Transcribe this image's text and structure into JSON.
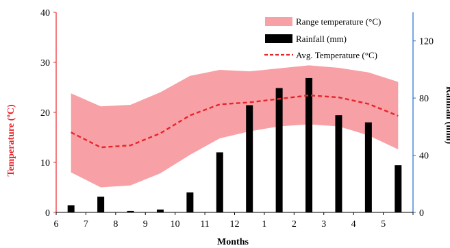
{
  "chart_data": {
    "type": "bar",
    "categories": [
      "6",
      "7",
      "8",
      "9",
      "10",
      "11",
      "12",
      "1",
      "2",
      "3",
      "4",
      "5"
    ],
    "xlabel": "Months",
    "ylabel_left": "Temperature (ºC)",
    "ylabel_right": "Rainfall (mm)",
    "ylim_left": [
      0,
      40
    ],
    "yticks_left": [
      "0",
      "10",
      "20",
      "30",
      "40"
    ],
    "ylim_right": [
      0,
      140
    ],
    "yticks_right": [
      "0",
      "40",
      "80",
      "120"
    ],
    "grid": false,
    "legend_position": "top-right",
    "series": [
      {
        "name": "Range temperature (°C)",
        "type": "area-range",
        "low": [
          8.0,
          5.0,
          5.4,
          7.8,
          11.5,
          14.8,
          16.2,
          17.2,
          17.6,
          17.2,
          15.4,
          12.6
        ],
        "high": [
          23.8,
          21.2,
          21.5,
          24.0,
          27.3,
          28.5,
          28.2,
          28.8,
          29.4,
          28.9,
          28.0,
          26.1
        ],
        "axis": "left",
        "color": "#f7a1a6"
      },
      {
        "name": "Rainfall (mm)",
        "type": "bar",
        "values": [
          5,
          11,
          1,
          2,
          14,
          42,
          75,
          87,
          94,
          68,
          63,
          33
        ],
        "axis": "right",
        "color": "#000000"
      },
      {
        "name": "Avg. Temperature (°C)",
        "type": "line",
        "values": [
          16.0,
          13.0,
          13.4,
          15.8,
          19.4,
          21.6,
          22.0,
          22.7,
          23.4,
          23.0,
          21.7,
          19.3
        ],
        "axis": "left",
        "color": "#e8242b",
        "dashed": true
      }
    ]
  },
  "colors": {
    "left_axis": "#e8242b",
    "right_axis": "#1f6fd1",
    "range_fill": "#f7a1a6",
    "bars": "#000000",
    "avg_line": "#e8242b"
  }
}
